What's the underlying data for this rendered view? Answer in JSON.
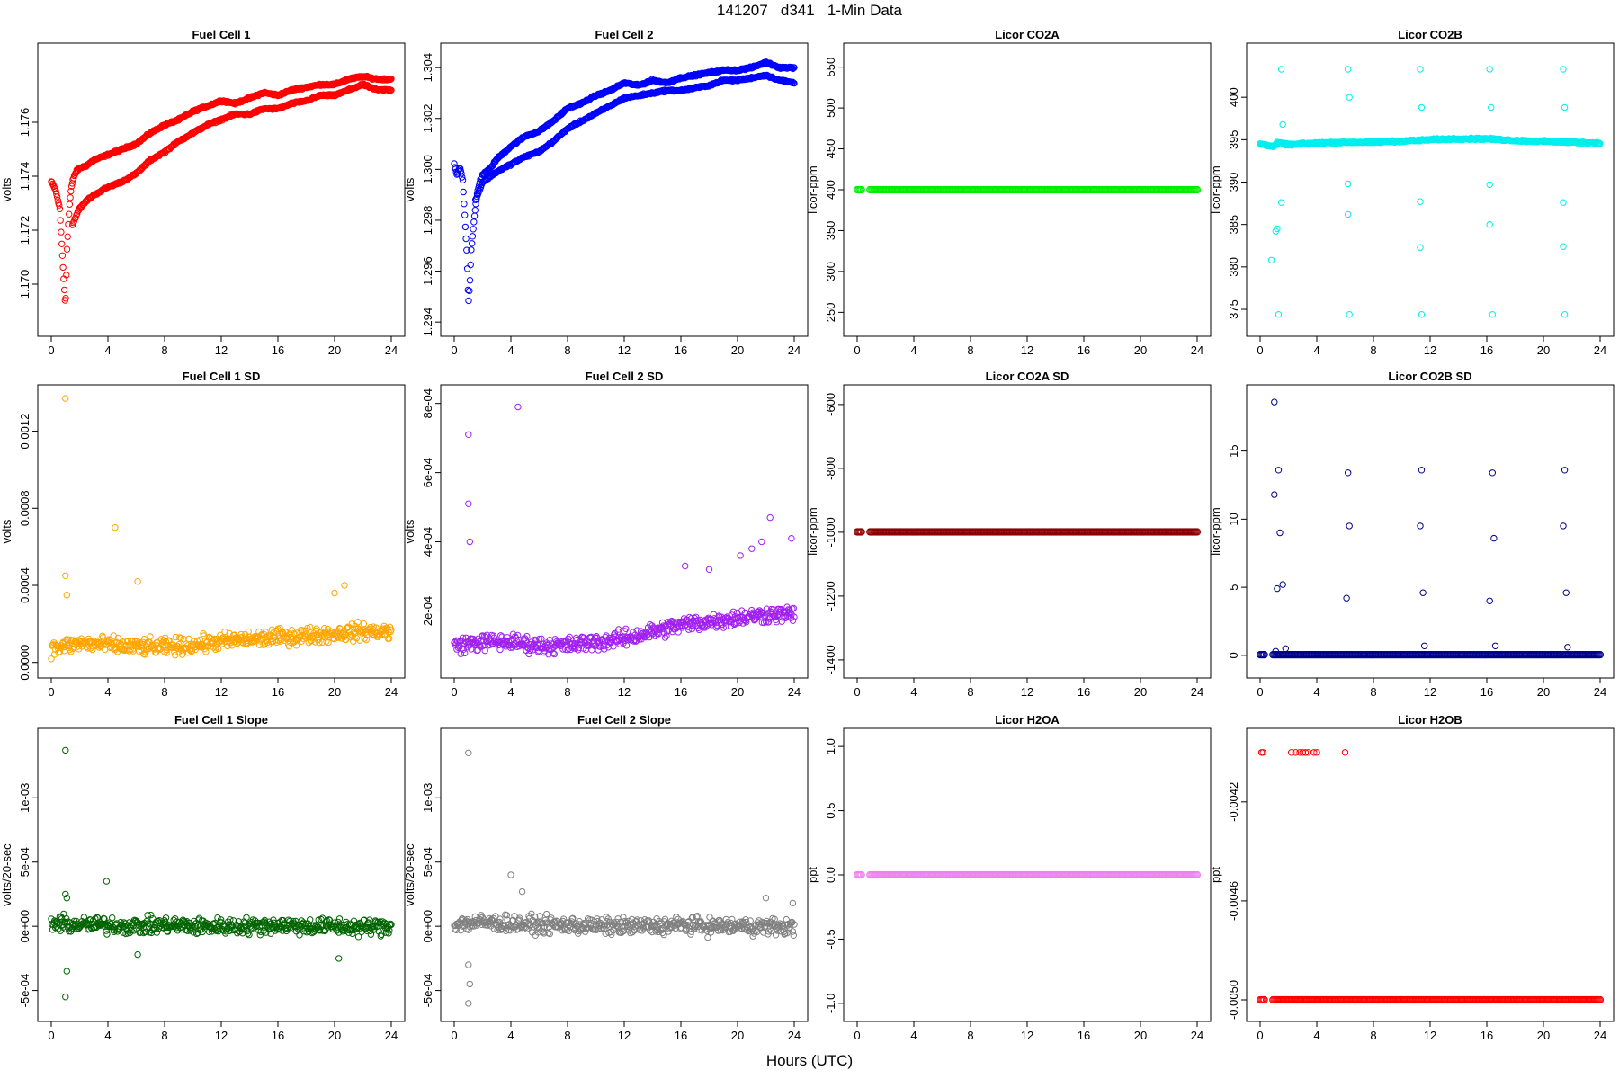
{
  "title": "141207   d341   1-Min Data",
  "x_axis_title": "Hours (UTC)",
  "chart_data": [
    {
      "type": "scatter",
      "title": "Fuel Cell 1",
      "xlabel": "",
      "ylabel": "volts",
      "xlim": [
        0,
        24
      ],
      "ylim": [
        1.1685,
        1.1785
      ],
      "color": "#ff0000",
      "x_ticks": [
        "0",
        "4",
        "8",
        "12",
        "16",
        "20",
        "24"
      ],
      "y_ticks": [
        "1.170",
        "1.172",
        "1.174",
        "1.176"
      ],
      "series": [
        {
          "x": [
            0,
            0.3,
            0.6,
            0.9,
            1.0,
            1.05,
            1.1,
            1.2,
            1.3,
            1.4,
            1.5,
            1.6,
            1.8,
            2,
            2.5,
            3,
            4,
            5,
            6,
            7,
            8,
            9,
            10,
            11,
            12,
            13,
            14,
            15,
            16,
            17,
            18,
            19,
            20,
            21,
            22,
            23,
            24
          ],
          "y": [
            1.1738,
            1.1735,
            1.1728,
            1.17,
            1.1692,
            1.17,
            1.1712,
            1.1722,
            1.173,
            1.1735,
            1.1738,
            1.174,
            1.1742,
            1.1743,
            1.1744,
            1.1746,
            1.1748,
            1.175,
            1.1752,
            1.1756,
            1.1759,
            1.1761,
            1.1764,
            1.1766,
            1.1768,
            1.1767,
            1.1769,
            1.1771,
            1.177,
            1.1772,
            1.1773,
            1.1774,
            1.1774,
            1.1776,
            1.1777,
            1.1776,
            1.1776
          ]
        },
        {
          "x": [
            1.5,
            1.8,
            2,
            2.5,
            3,
            4,
            5,
            6,
            7,
            8,
            9,
            10,
            11,
            12,
            13,
            14,
            15,
            16,
            17,
            18,
            19,
            20,
            21,
            22,
            23,
            24
          ],
          "y": [
            1.1722,
            1.1726,
            1.1728,
            1.1731,
            1.1733,
            1.1736,
            1.1738,
            1.1741,
            1.1746,
            1.1749,
            1.1753,
            1.1756,
            1.1759,
            1.1761,
            1.1763,
            1.1763,
            1.1765,
            1.1765,
            1.1767,
            1.1768,
            1.177,
            1.177,
            1.1772,
            1.1774,
            1.1772,
            1.1772
          ]
        }
      ]
    },
    {
      "type": "scatter",
      "title": "Fuel Cell 2",
      "xlabel": "",
      "ylabel": "volts",
      "xlim": [
        0,
        24
      ],
      "ylim": [
        1.2939,
        1.3045
      ],
      "color": "#0000ff",
      "x_ticks": [
        "0",
        "4",
        "8",
        "12",
        "16",
        "20",
        "24"
      ],
      "y_ticks": [
        "1.294",
        "1.296",
        "1.298",
        "1.300",
        "1.302",
        "1.304"
      ],
      "series": [
        {
          "x": [
            0,
            0.2,
            0.4,
            0.6,
            0.9,
            1.0,
            1.1,
            1.2,
            1.4,
            1.6,
            1.8,
            2,
            2.5,
            3,
            4,
            5,
            6,
            7,
            8,
            9,
            10,
            11,
            12,
            13,
            14,
            15,
            16,
            17,
            18,
            19,
            20,
            21,
            22,
            23,
            24
          ],
          "y": [
            1.3002,
            1.2998,
            1.3001,
            1.2996,
            1.2966,
            1.2947,
            1.2955,
            1.2968,
            1.298,
            1.299,
            1.2995,
            1.2998,
            1.3,
            1.3004,
            1.3009,
            1.3013,
            1.3015,
            1.3019,
            1.3024,
            1.3026,
            1.3029,
            1.3031,
            1.3034,
            1.3033,
            1.3035,
            1.3034,
            1.3036,
            1.3037,
            1.3038,
            1.3039,
            1.3039,
            1.304,
            1.3042,
            1.304,
            1.304
          ]
        },
        {
          "x": [
            1.5,
            1.8,
            2,
            2.5,
            3,
            4,
            5,
            6,
            7,
            8,
            9,
            10,
            11,
            12,
            13,
            14,
            15,
            16,
            17,
            18,
            19,
            20,
            21,
            22,
            23,
            24
          ],
          "y": [
            1.2988,
            1.2992,
            1.2995,
            1.2997,
            1.2999,
            1.3002,
            1.3005,
            1.3007,
            1.3011,
            1.3016,
            1.3019,
            1.3022,
            1.3025,
            1.3028,
            1.3029,
            1.303,
            1.3031,
            1.3031,
            1.3032,
            1.3033,
            1.3035,
            1.3035,
            1.3036,
            1.3037,
            1.3035,
            1.3034
          ]
        }
      ]
    },
    {
      "type": "scatter",
      "title": "Licor CO2A",
      "xlabel": "",
      "ylabel": "licor-ppm",
      "xlim": [
        0,
        24
      ],
      "ylim": [
        235,
        565
      ],
      "color": "#00ee00",
      "x_ticks": [
        "0",
        "4",
        "8",
        "12",
        "16",
        "20",
        "24"
      ],
      "y_ticks": [
        "250",
        "300",
        "350",
        "400",
        "450",
        "500",
        "550"
      ],
      "series": [
        {
          "x": [
            0,
            24
          ],
          "y": [
            400,
            400
          ]
        }
      ]
    },
    {
      "type": "scatter",
      "title": "Licor CO2B",
      "xlabel": "",
      "ylabel": "licor-ppm",
      "xlim": [
        0,
        24
      ],
      "ylim": [
        373.2,
        405
      ],
      "color": "#00eeee",
      "x_ticks": [
        "0",
        "4",
        "8",
        "12",
        "16",
        "20",
        "24"
      ],
      "y_ticks": [
        "375",
        "380",
        "385",
        "390",
        "395",
        "400"
      ],
      "series": [
        {
          "x": [
            0,
            1,
            1.2,
            1.4,
            2,
            4,
            6,
            8,
            11,
            12,
            14,
            16,
            18,
            20,
            22,
            24
          ],
          "y": [
            394.5,
            394.2,
            394.6,
            394.6,
            394.4,
            394.6,
            394.7,
            394.7,
            394.9,
            395.0,
            395.1,
            395.1,
            394.9,
            394.8,
            394.7,
            394.6
          ]
        },
        {
          "x": [
            1.5,
            6.2,
            11.3,
            16.2,
            21.4,
            1.3,
            6.3,
            11.4,
            16.4,
            21.5,
            1.6,
            6.3,
            11.4,
            16.3,
            21.5,
            0.8,
            1.1,
            1.2,
            6.2,
            11.3,
            16.2,
            21.4,
            1.5,
            6.2,
            11.3,
            16.2,
            21.4
          ],
          "y": [
            403.3,
            403.3,
            403.3,
            403.3,
            403.3,
            374.4,
            374.4,
            374.4,
            374.4,
            374.4,
            396.8,
            400.0,
            398.8,
            398.8,
            398.8,
            380.8,
            384.2,
            384.5,
            386.2,
            382.3,
            385.0,
            382.4,
            387.6,
            389.8,
            387.7,
            389.7,
            387.6
          ]
        }
      ]
    },
    {
      "type": "scatter",
      "title": "Fuel Cell 1 SD",
      "xlabel": "",
      "ylabel": "volts",
      "xlim": [
        0,
        24
      ],
      "ylim": [
        -2e-05,
        0.00138
      ],
      "color": "#ffa500",
      "x_ticks": [
        "0",
        "4",
        "8",
        "12",
        "16",
        "20",
        "24"
      ],
      "y_ticks": [
        "0.0000",
        "0.0004",
        "0.0008",
        "0.0012"
      ],
      "series": [
        {
          "x": [
            0,
            2,
            4,
            6,
            8,
            10,
            12,
            14,
            16,
            18,
            20,
            22,
            24
          ],
          "y": [
            7e-05,
            0.0001,
            9e-05,
            8e-05,
            8e-05,
            9e-05,
            0.00011,
            0.00012,
            0.00013,
            0.00014,
            0.00015,
            0.00016,
            0.00016
          ]
        },
        {
          "x": [
            1.0,
            1.0,
            1.1,
            4.5,
            6.1,
            20.0,
            20.7
          ],
          "y": [
            0.00137,
            0.00045,
            0.00035,
            0.0007,
            0.00042,
            0.00036,
            0.0004
          ]
        }
      ]
    },
    {
      "type": "scatter",
      "title": "Fuel Cell 2 SD",
      "xlabel": "",
      "ylabel": "volts",
      "xlim": [
        0,
        24
      ],
      "ylim": [
        4e-05,
        0.00082
      ],
      "color": "#a020f0",
      "x_ticks": [
        "0",
        "4",
        "8",
        "12",
        "16",
        "20",
        "24"
      ],
      "y_ticks": [
        "2e-04",
        "4e-04",
        "6e-04",
        "8e-04"
      ],
      "series": [
        {
          "x": [
            0,
            2,
            4,
            6,
            8,
            10,
            12,
            14,
            16,
            18,
            20,
            22,
            24
          ],
          "y": [
            0.0001,
            0.00011,
            0.00011,
            0.0001,
            0.0001,
            0.00011,
            0.00012,
            0.00014,
            0.00016,
            0.00017,
            0.00018,
            0.00019,
            0.00019
          ]
        },
        {
          "x": [
            1.0,
            1.0,
            1.1,
            4.5,
            16.3,
            18.0,
            20.2,
            21.0,
            21.7,
            22.3,
            23.8
          ],
          "y": [
            0.00071,
            0.00051,
            0.0004,
            0.00079,
            0.00033,
            0.00032,
            0.00036,
            0.00038,
            0.0004,
            0.00047,
            0.00041
          ]
        }
      ]
    },
    {
      "type": "scatter",
      "title": "Licor CO2A SD",
      "xlabel": "",
      "ylabel": "licor-ppm",
      "xlim": [
        0,
        24
      ],
      "ylim": [
        -1420,
        -575
      ],
      "color": "#8b0000",
      "x_ticks": [
        "0",
        "4",
        "8",
        "12",
        "16",
        "20",
        "24"
      ],
      "y_ticks": [
        "-1400",
        "-1200",
        "-1000",
        "-800",
        "-600"
      ],
      "series": [
        {
          "x": [
            0,
            24
          ],
          "y": [
            -999,
            -999
          ]
        }
      ]
    },
    {
      "type": "scatter",
      "title": "Licor CO2B SD",
      "xlabel": "",
      "ylabel": "licor-ppm",
      "xlim": [
        0,
        24
      ],
      "ylim": [
        -0.8,
        19.0
      ],
      "color": "#00008b",
      "x_ticks": [
        "0",
        "4",
        "8",
        "12",
        "16",
        "20",
        "24"
      ],
      "y_ticks": [
        "0",
        "5",
        "10",
        "15"
      ],
      "series": [
        {
          "x": [
            0,
            24
          ],
          "y": [
            0.05,
            0.05
          ]
        },
        {
          "x": [
            1.0,
            1.3,
            1.4,
            6.2,
            11.4,
            16.4,
            21.5,
            1.0,
            6.3,
            11.3,
            16.5,
            21.4,
            1.2,
            1.6,
            6.1,
            11.5,
            16.2,
            21.6,
            1.1,
            1.8,
            11.6,
            16.6,
            21.7
          ],
          "y": [
            18.6,
            13.6,
            9.0,
            13.4,
            13.6,
            13.4,
            13.6,
            11.8,
            9.5,
            9.5,
            8.6,
            9.5,
            4.9,
            5.2,
            4.2,
            4.6,
            4.0,
            4.6,
            0.3,
            0.5,
            0.7,
            0.7,
            0.6
          ]
        }
      ]
    },
    {
      "type": "scatter",
      "title": "Fuel Cell 1 Slope",
      "xlabel": "",
      "ylabel": "volts/20-sec",
      "xlim": [
        0,
        24
      ],
      "ylim": [
        -0.00065,
        0.00145
      ],
      "color": "#006400",
      "x_ticks": [
        "0",
        "4",
        "8",
        "12",
        "16",
        "20",
        "24"
      ],
      "y_ticks": [
        "-5e-04",
        "0e+00",
        "5e-04",
        "1e-03"
      ],
      "series": [
        {
          "x": [
            0,
            2,
            4,
            6,
            8,
            10,
            12,
            14,
            16,
            18,
            20,
            22,
            24
          ],
          "y": [
            2e-05,
            1e-05,
            1e-05,
            0.0,
            1e-05,
            0.0,
            0.0,
            0.0,
            1e-05,
            0.0,
            0.0,
            -1e-05,
            0.0
          ]
        },
        {
          "x": [
            1.0,
            1.0,
            1.1,
            3.9,
            6.1,
            20.3,
            1.0,
            1.1
          ],
          "y": [
            0.00137,
            -0.00055,
            -0.00035,
            0.00035,
            -0.00022,
            -0.00025,
            0.00025,
            0.00022
          ]
        }
      ]
    },
    {
      "type": "scatter",
      "title": "Fuel Cell 2 Slope",
      "xlabel": "",
      "ylabel": "volts/20-sec",
      "xlim": [
        0,
        24
      ],
      "ylim": [
        -0.00065,
        0.00145
      ],
      "color": "#808080",
      "x_ticks": [
        "0",
        "4",
        "8",
        "12",
        "16",
        "20",
        "24"
      ],
      "y_ticks": [
        "-5e-04",
        "0e+00",
        "5e-04",
        "1e-03"
      ],
      "series": [
        {
          "x": [
            0,
            2,
            4,
            6,
            8,
            10,
            12,
            14,
            16,
            18,
            20,
            22,
            24
          ],
          "y": [
            2e-05,
            3e-05,
            2e-05,
            1e-05,
            1e-05,
            0.0,
            0.0,
            0.0,
            1e-05,
            0.0,
            0.0,
            0.0,
            -1e-05
          ]
        },
        {
          "x": [
            1.0,
            1.0,
            1.1,
            4.0,
            4.8,
            1.0,
            22.0,
            23.9
          ],
          "y": [
            0.00135,
            -0.0006,
            -0.00045,
            0.0004,
            0.00027,
            -0.0003,
            0.00022,
            0.00018
          ]
        }
      ]
    },
    {
      "type": "scatter",
      "title": "Licor H2OA",
      "xlabel": "",
      "ylabel": "ppt",
      "xlim": [
        0,
        24
      ],
      "ylim": [
        -1.05,
        1.05
      ],
      "color": "#ee82ee",
      "x_ticks": [
        "0",
        "4",
        "8",
        "12",
        "16",
        "20",
        "24"
      ],
      "y_ticks": [
        "-1.0",
        "-0.5",
        "0.0",
        "0.5",
        "1.0"
      ],
      "series": [
        {
          "x": [
            0,
            24
          ],
          "y": [
            0.0,
            0.0
          ]
        }
      ]
    },
    {
      "type": "scatter",
      "title": "Licor H2OB",
      "xlabel": "",
      "ylabel": "ppt",
      "xlim": [
        0,
        24
      ],
      "ylim": [
        -0.00504,
        -0.00395
      ],
      "color": "#ff0000",
      "x_ticks": [
        "0",
        "4",
        "8",
        "12",
        "16",
        "20",
        "24"
      ],
      "y_ticks": [
        "-0.0050",
        "-0.0046",
        "-0.0042"
      ],
      "series": [
        {
          "x": [
            0,
            24
          ],
          "y": [
            -0.005,
            -0.005
          ]
        },
        {
          "x": [
            0.1,
            0.2,
            2.2,
            2.5,
            2.8,
            3.0,
            3.2,
            3.4,
            3.8,
            4.0,
            6.0
          ],
          "y": [
            -0.004,
            -0.004,
            -0.004,
            -0.004,
            -0.004,
            -0.004,
            -0.004,
            -0.004,
            -0.004,
            -0.004,
            -0.004
          ]
        }
      ]
    }
  ]
}
